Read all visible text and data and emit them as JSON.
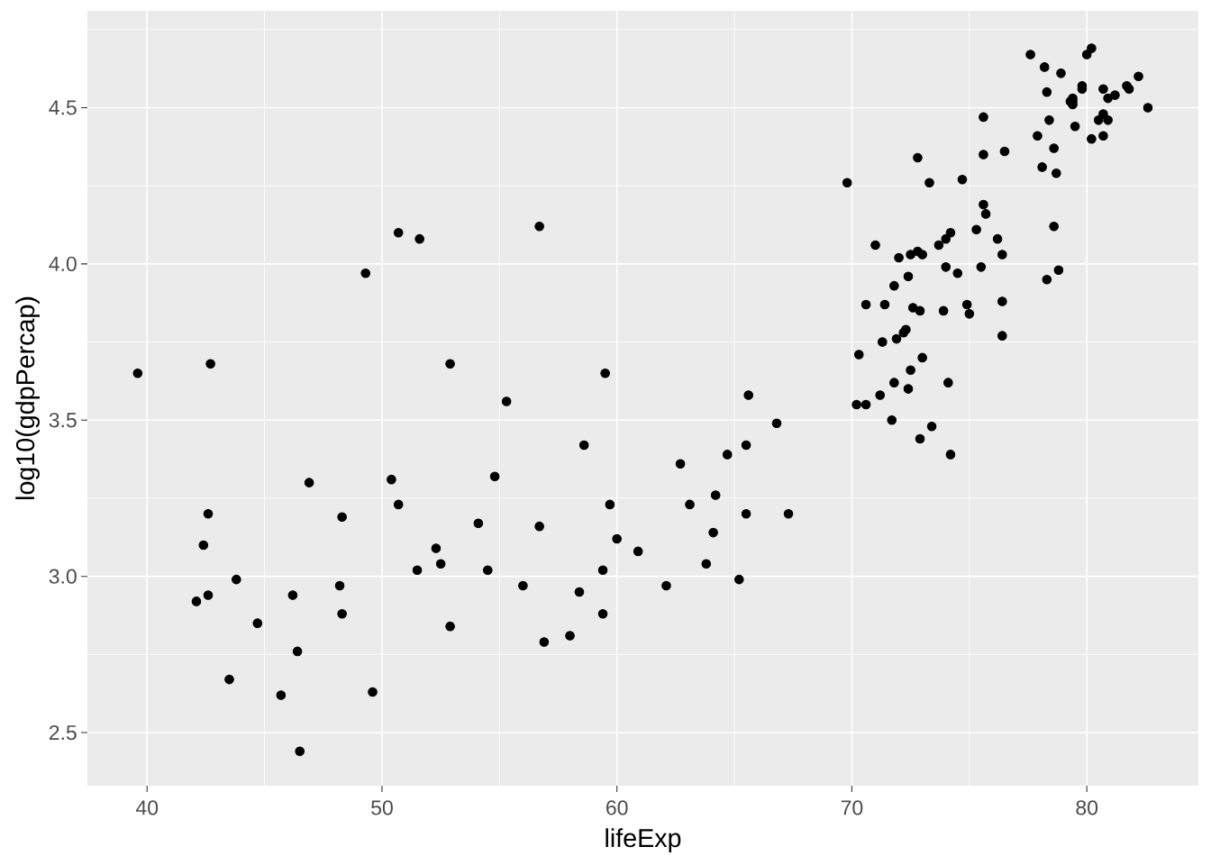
{
  "chart_data": {
    "type": "scatter",
    "xlabel": "lifeExp",
    "ylabel": "log10(gdpPercap)",
    "x": [
      43.8,
      76.4,
      72.3,
      42.7,
      75.3,
      81.2,
      79.8,
      75.6,
      64.1,
      79.4,
      56.7,
      65.6,
      74.9,
      50.7,
      72.4,
      73.0,
      52.3,
      49.6,
      59.7,
      50.4,
      80.7,
      44.7,
      50.7,
      78.6,
      73.0,
      72.9,
      65.2,
      46.5,
      55.3,
      78.8,
      48.3,
      75.7,
      78.3,
      76.5,
      78.3,
      54.8,
      72.2,
      75.0,
      71.3,
      71.9,
      51.6,
      58.0,
      52.9,
      79.3,
      80.7,
      56.7,
      59.4,
      79.4,
      60.0,
      79.5,
      70.3,
      56.0,
      46.4,
      60.9,
      70.2,
      82.2,
      73.3,
      81.8,
      64.7,
      70.6,
      71.0,
      59.5,
      78.9,
      80.7,
      80.5,
      72.6,
      82.6,
      72.5,
      54.1,
      67.3,
      78.6,
      77.6,
      72.0,
      42.6,
      45.7,
      74.0,
      59.4,
      48.3,
      74.2,
      54.5,
      64.2,
      72.8,
      76.2,
      66.8,
      74.5,
      71.2,
      42.1,
      62.1,
      52.9,
      63.8,
      79.8,
      80.2,
      72.9,
      56.9,
      46.9,
      80.2,
      75.6,
      65.5,
      75.5,
      71.8,
      71.4,
      71.7,
      75.6,
      78.1,
      78.7,
      76.4,
      72.5,
      46.2,
      65.5,
      72.8,
      63.1,
      74.0,
      42.6,
      80.0,
      74.7,
      77.9,
      48.2,
      49.3,
      80.9,
      72.4,
      58.6,
      39.6,
      80.9,
      81.7,
      74.1,
      78.4,
      52.5,
      70.6,
      58.4,
      69.8,
      73.9,
      71.8,
      51.5,
      79.4,
      78.2,
      76.4,
      73.7,
      74.2,
      73.4,
      62.7,
      42.4,
      43.5
    ],
    "values": [
      2.99,
      3.77,
      3.79,
      3.68,
      4.11,
      4.54,
      4.56,
      4.47,
      3.14,
      4.53,
      3.16,
      3.58,
      3.87,
      4.1,
      3.96,
      4.03,
      3.09,
      2.63,
      3.23,
      3.31,
      4.56,
      2.85,
      3.23,
      4.12,
      3.7,
      3.85,
      2.99,
      2.44,
      3.56,
      3.98,
      3.19,
      4.16,
      3.95,
      4.36,
      4.55,
      3.32,
      3.78,
      3.84,
      3.75,
      3.76,
      4.08,
      2.81,
      2.84,
      4.52,
      4.48,
      4.12,
      2.88,
      4.51,
      3.12,
      4.44,
      3.71,
      2.97,
      2.76,
      3.08,
      3.55,
      4.6,
      4.26,
      4.56,
      3.39,
      3.55,
      4.06,
      3.65,
      4.61,
      4.41,
      4.46,
      3.86,
      4.5,
      3.66,
      3.17,
      3.2,
      4.37,
      4.67,
      4.02,
      3.2,
      2.62,
      4.08,
      3.02,
      2.88,
      4.1,
      3.02,
      3.26,
      4.04,
      4.08,
      3.49,
      3.97,
      3.58,
      2.92,
      2.97,
      3.68,
      3.04,
      4.57,
      4.4,
      3.44,
      2.79,
      3.3,
      4.69,
      4.35,
      3.42,
      3.99,
      3.62,
      3.87,
      3.5,
      4.19,
      4.31,
      4.29,
      3.88,
      4.03,
      2.94,
      3.2,
      4.34,
      3.23,
      3.99,
      2.94,
      4.67,
      4.27,
      4.41,
      2.97,
      3.97,
      4.46,
      3.6,
      3.42,
      3.65,
      4.53,
      4.57,
      3.62,
      4.46,
      3.04,
      3.87,
      2.95,
      4.26,
      3.85,
      3.93,
      3.02,
      4.52,
      4.63,
      4.03,
      4.06,
      3.39,
      3.48,
      3.36,
      3.1,
      2.67
    ],
    "color": "#000000",
    "marker": "circle",
    "xlim": [
      37.46,
      84.75
    ],
    "ylim": [
      2.33,
      4.81
    ],
    "xticks": [
      40,
      50,
      60,
      70,
      80
    ],
    "yticks": [
      2.5,
      {
        "value": 3,
        "label": "3.0"
      },
      3.5,
      {
        "value": 4,
        "label": "4.0"
      },
      4.5
    ],
    "grid": true
  }
}
